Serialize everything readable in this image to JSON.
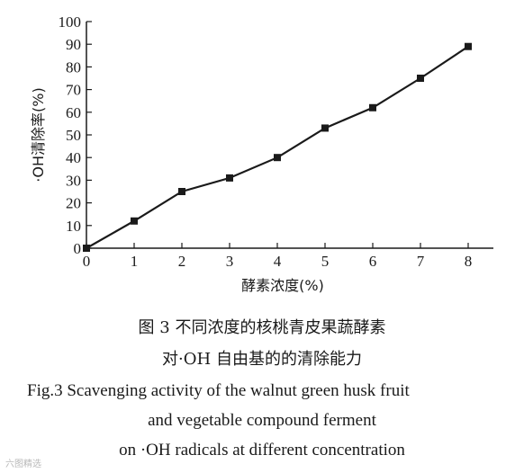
{
  "chart_data": {
    "type": "line",
    "x": [
      0,
      1,
      2,
      3,
      4,
      5,
      6,
      7,
      8
    ],
    "series": [
      {
        "values": [
          0,
          12,
          25,
          31,
          40,
          53,
          62,
          75,
          89
        ],
        "color": "#1a1a1a",
        "marker": "square"
      }
    ],
    "xlabel": "酵素浓度(%)",
    "ylabel": "·OH清除率(%)",
    "xlim": [
      0,
      8
    ],
    "ylim": [
      0,
      100
    ],
    "xticks": [
      0,
      1,
      2,
      3,
      4,
      5,
      6,
      7,
      8
    ],
    "yticks": [
      0,
      10,
      20,
      30,
      40,
      50,
      60,
      70,
      80,
      90,
      100
    ],
    "grid": false
  },
  "caption": {
    "cn_line1": "图 3   不同浓度的核桃青皮果蔬酵素",
    "cn_line2": "对·OH 自由基的的清除能力",
    "en_line1": "Fig.3    Scavenging activity of the walnut green husk fruit",
    "en_line2": "and vegetable compound ferment",
    "en_line3": "on ·OH radicals at different concentration"
  },
  "watermark": "六图精选"
}
